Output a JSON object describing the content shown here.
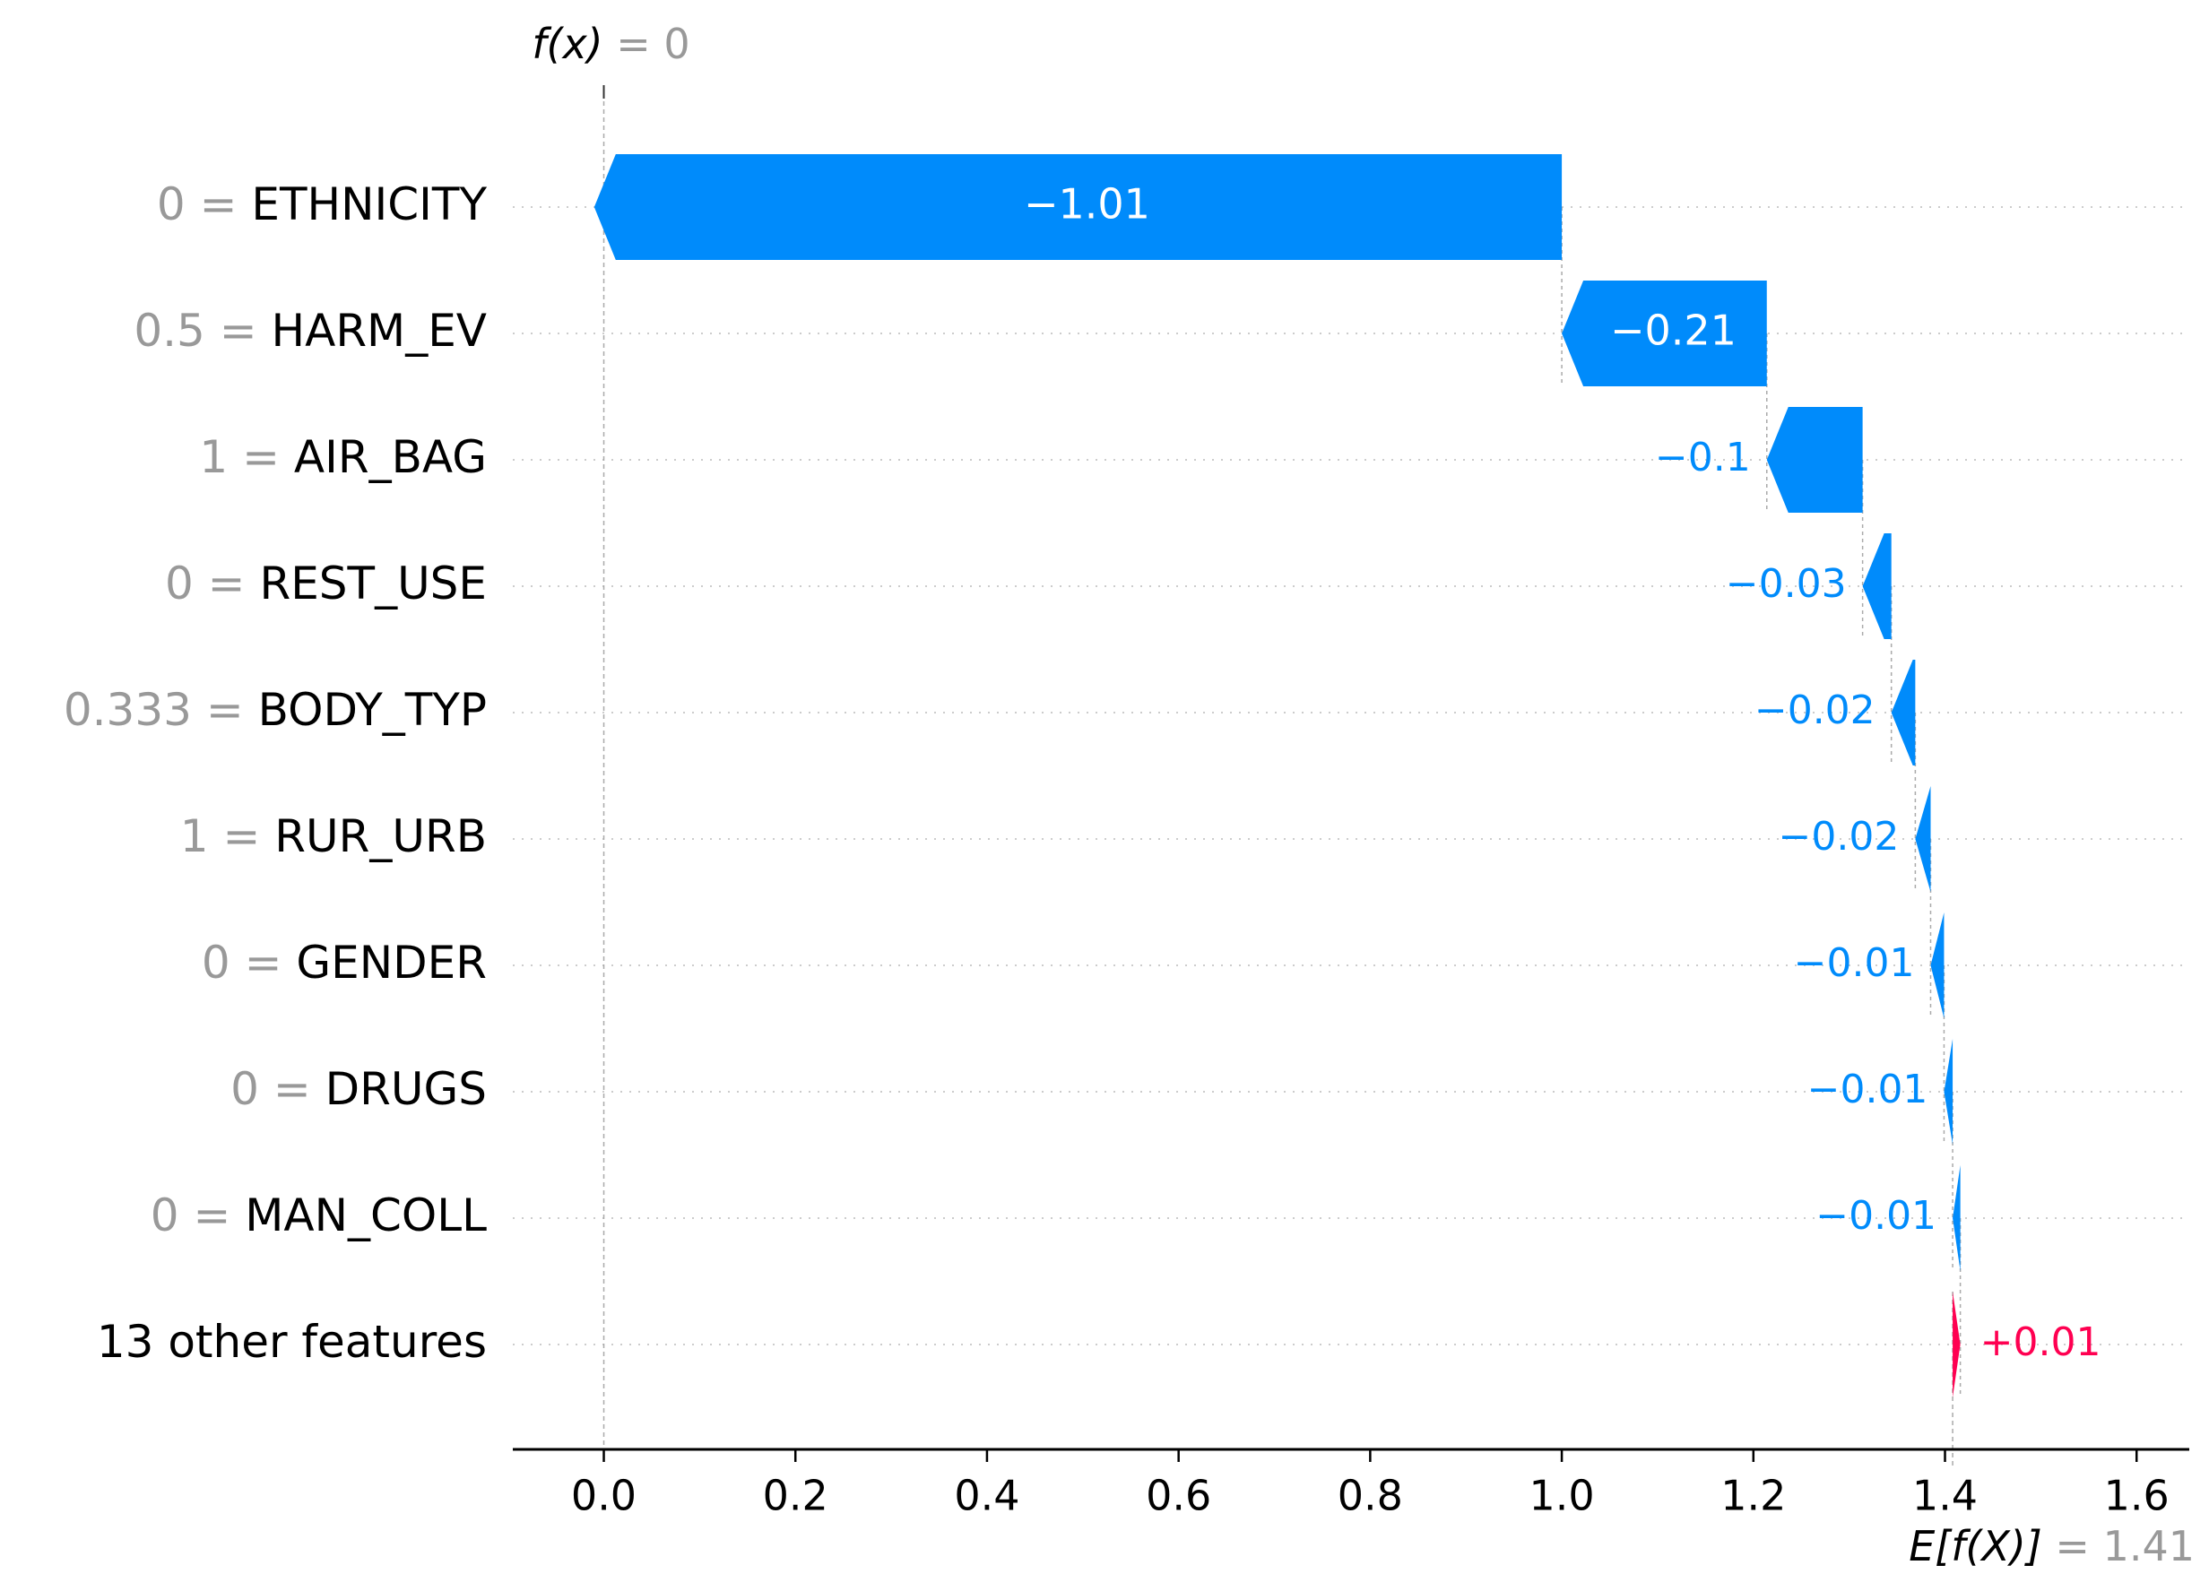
{
  "chart_data": {
    "type": "waterfall",
    "fx_label_name": "f(x)",
    "fx_label_value": "= 0",
    "ex_label_name": "E[f(X)]",
    "ex_label_value": "= 1.41",
    "base_value": 1.408,
    "final_value": 0.0,
    "xlim": [
      -0.095,
      1.655
    ],
    "x_ticks": [
      0.0,
      0.2,
      0.4,
      0.6,
      0.8,
      1.0,
      1.2,
      1.4,
      1.6
    ],
    "x_tick_labels": [
      "0.0",
      "0.2",
      "0.4",
      "0.6",
      "0.8",
      "1.0",
      "1.2",
      "1.4",
      "1.6"
    ],
    "grid": "horizontal dotted",
    "colors": {
      "negative": "#008bfb",
      "positive": "#ff0051",
      "feature_value": "#999999",
      "axis": "#000000"
    },
    "features": [
      {
        "value": "0",
        "name": "ETHNICITY",
        "shap": -1.01,
        "label": "−1.01"
      },
      {
        "value": "0.5",
        "name": "HARM_EV",
        "shap": -0.214,
        "label": "−0.21"
      },
      {
        "value": "1",
        "name": "AIR_BAG",
        "shap": -0.1,
        "label": "−0.1"
      },
      {
        "value": "0",
        "name": "REST_USE",
        "shap": -0.03,
        "label": "−0.03"
      },
      {
        "value": "0.333",
        "name": "BODY_TYP",
        "shap": -0.025,
        "label": "−0.02"
      },
      {
        "value": "1",
        "name": "RUR_URB",
        "shap": -0.016,
        "label": "−0.02"
      },
      {
        "value": "0",
        "name": "GENDER",
        "shap": -0.014,
        "label": "−0.01"
      },
      {
        "value": "0",
        "name": "DRUGS",
        "shap": -0.009,
        "label": "−0.01"
      },
      {
        "value": "0",
        "name": "MAN_COLL",
        "shap": -0.008,
        "label": "−0.01"
      },
      {
        "value": "",
        "name": "13 other features",
        "shap": 0.008,
        "label": "+0.01"
      }
    ]
  }
}
